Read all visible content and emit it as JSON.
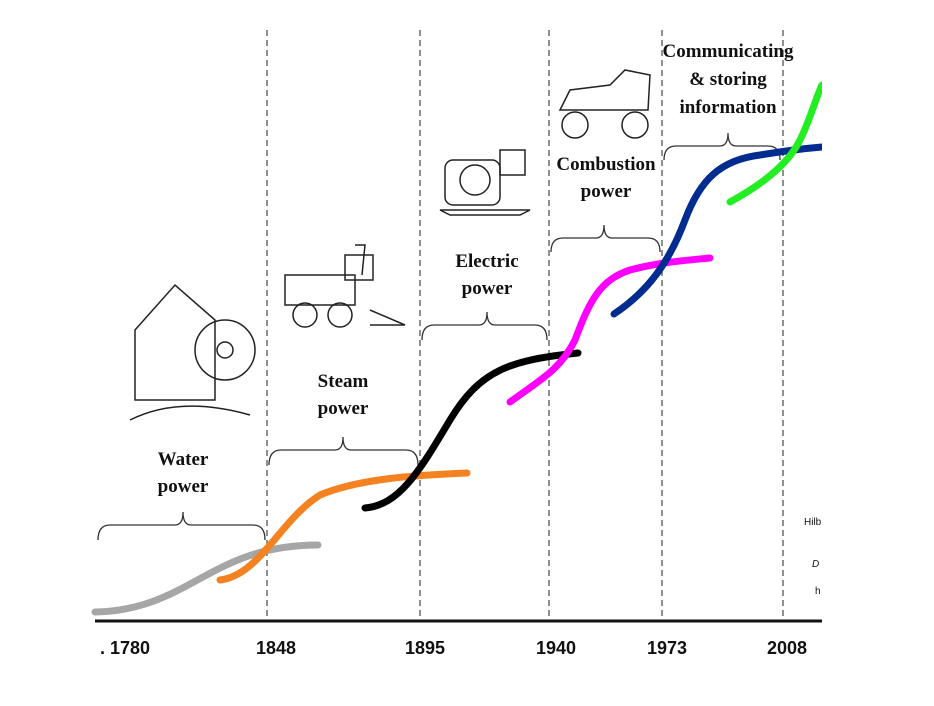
{
  "eras": [
    {
      "lines": [
        "Water",
        "power"
      ]
    },
    {
      "lines": [
        "Steam",
        "power"
      ]
    },
    {
      "lines": [
        "Electric",
        "power"
      ]
    },
    {
      "lines": [
        "Combustion",
        "power"
      ]
    },
    {
      "lines": [
        "Communicating",
        "& storing",
        "information"
      ]
    }
  ],
  "years": [
    ". 1780",
    "1848",
    "1895",
    "1940",
    "1973",
    "2008"
  ],
  "fragments": [
    "Hilb",
    "D",
    "h"
  ]
}
